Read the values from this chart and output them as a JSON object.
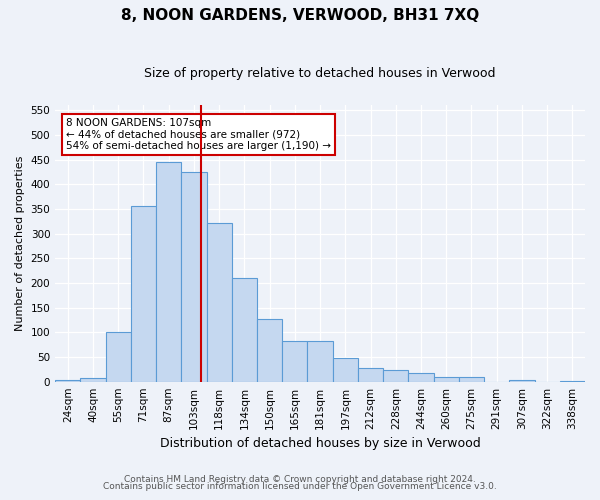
{
  "title": "8, NOON GARDENS, VERWOOD, BH31 7XQ",
  "subtitle": "Size of property relative to detached houses in Verwood",
  "xlabel": "Distribution of detached houses by size in Verwood",
  "ylabel": "Number of detached properties",
  "categories": [
    "24sqm",
    "40sqm",
    "55sqm",
    "71sqm",
    "87sqm",
    "103sqm",
    "118sqm",
    "134sqm",
    "150sqm",
    "165sqm",
    "181sqm",
    "197sqm",
    "212sqm",
    "228sqm",
    "244sqm",
    "260sqm",
    "275sqm",
    "291sqm",
    "307sqm",
    "322sqm",
    "338sqm"
  ],
  "values": [
    4,
    8,
    100,
    355,
    445,
    425,
    322,
    210,
    128,
    82,
    82,
    48,
    28,
    24,
    18,
    10,
    10,
    0,
    4,
    0,
    2
  ],
  "bar_color": "#c5d8f0",
  "bar_edge_color": "#5b9bd5",
  "vline_color": "#cc0000",
  "vline_x_index": 5.27,
  "annotation_text": "8 NOON GARDENS: 107sqm\n← 44% of detached houses are smaller (972)\n54% of semi-detached houses are larger (1,190) →",
  "annotation_box_facecolor": "#ffffff",
  "annotation_box_edgecolor": "#cc0000",
  "ylim": [
    0,
    560
  ],
  "yticks": [
    0,
    50,
    100,
    150,
    200,
    250,
    300,
    350,
    400,
    450,
    500,
    550
  ],
  "footer_line1": "Contains HM Land Registry data © Crown copyright and database right 2024.",
  "footer_line2": "Contains public sector information licensed under the Open Government Licence v3.0.",
  "bg_color": "#eef2f9",
  "grid_color": "#ffffff",
  "title_fontsize": 11,
  "subtitle_fontsize": 9,
  "xlabel_fontsize": 9,
  "ylabel_fontsize": 8,
  "tick_fontsize": 7.5,
  "annotation_fontsize": 7.5,
  "footer_fontsize": 6.5
}
